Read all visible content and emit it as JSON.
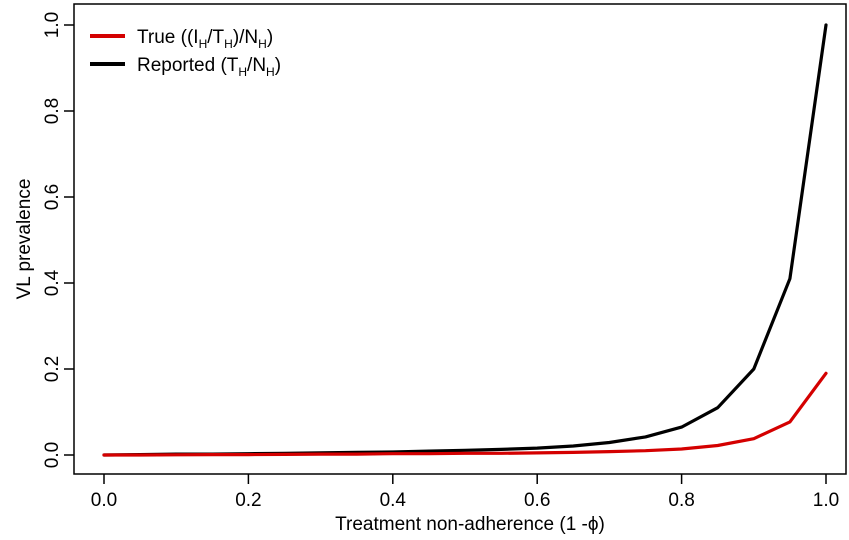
{
  "chart_data": {
    "type": "line",
    "title": "",
    "xlabel": "Treatment non-adherence (1 -ϕ)",
    "ylabel": "VL prevalence",
    "xlim": [
      0,
      1
    ],
    "ylim": [
      0,
      1
    ],
    "xticks": [
      "0.0",
      "0.2",
      "0.4",
      "0.6",
      "0.8",
      "1.0"
    ],
    "yticks": [
      "0.0",
      "0.2",
      "0.4",
      "0.6",
      "0.8",
      "1.0"
    ],
    "grid": false,
    "legend_position": "top-left",
    "series": [
      {
        "name": "True ((I_H/T_H)/N_H)",
        "color": "#d40000",
        "x": [
          0,
          0.05,
          0.1,
          0.15,
          0.2,
          0.25,
          0.3,
          0.35,
          0.4,
          0.45,
          0.5,
          0.55,
          0.6,
          0.65,
          0.7,
          0.75,
          0.8,
          0.85,
          0.9,
          0.95,
          1.0
        ],
        "y": [
          0,
          0,
          0.0005,
          0.001,
          0.001,
          0.0015,
          0.002,
          0.002,
          0.003,
          0.003,
          0.004,
          0.004,
          0.005,
          0.006,
          0.008,
          0.01,
          0.014,
          0.022,
          0.038,
          0.077,
          0.19
        ]
      },
      {
        "name": "Reported (T_H/N_H)",
        "color": "#000000",
        "x": [
          0,
          0.05,
          0.1,
          0.15,
          0.2,
          0.25,
          0.3,
          0.35,
          0.4,
          0.45,
          0.5,
          0.55,
          0.6,
          0.65,
          0.7,
          0.75,
          0.8,
          0.85,
          0.9,
          0.95,
          1.0
        ],
        "y": [
          0,
          0.001,
          0.002,
          0.002,
          0.003,
          0.004,
          0.005,
          0.006,
          0.007,
          0.009,
          0.011,
          0.013,
          0.016,
          0.021,
          0.029,
          0.042,
          0.065,
          0.11,
          0.2,
          0.41,
          1.0
        ]
      }
    ]
  },
  "legend": {
    "true_base": "True ((I",
    "true_sub1": "H",
    "true_mid": "/T",
    "true_sub2": "H",
    "true_after": ")/N",
    "true_sub3": "H",
    "true_end": ")",
    "rep_base": "Reported (T",
    "rep_sub1": "H",
    "rep_mid": "/N",
    "rep_sub2": "H",
    "rep_end": ")"
  }
}
